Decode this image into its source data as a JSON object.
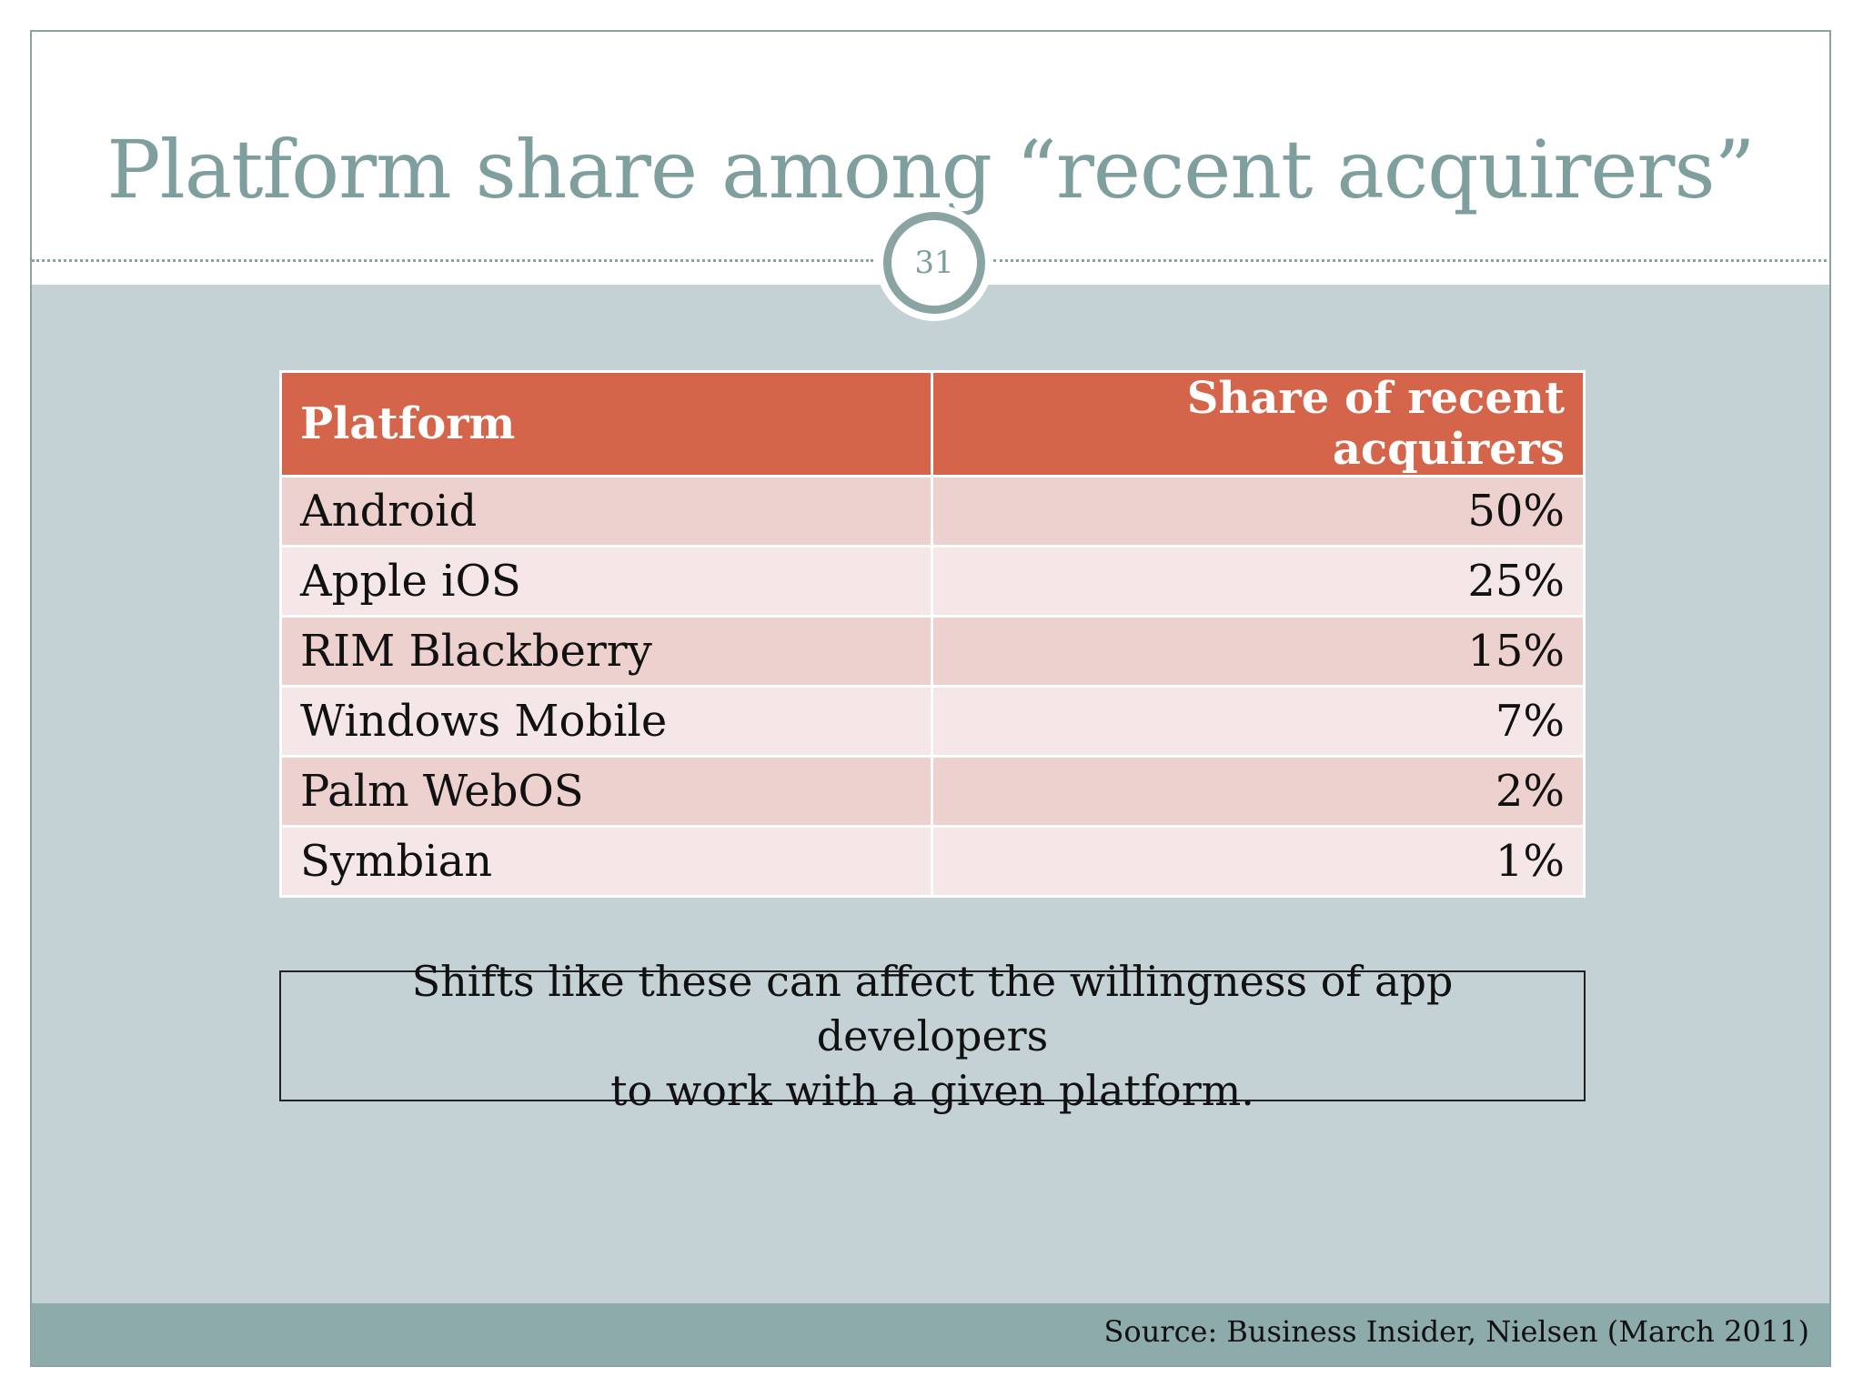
{
  "slide": {
    "title": "Platform share among “recent acquirers”",
    "slide_number": "31"
  },
  "table": {
    "headers": [
      "Platform",
      "Share of recent acquirers"
    ],
    "rows": [
      {
        "platform": "Android",
        "share": "50%"
      },
      {
        "platform": "Apple iOS",
        "share": "25%"
      },
      {
        "platform": "RIM Blackberry",
        "share": "15%"
      },
      {
        "platform": "Windows Mobile",
        "share": "7%"
      },
      {
        "platform": "Palm WebOS",
        "share": "2%"
      },
      {
        "platform": "Symbian",
        "share": "1%"
      }
    ]
  },
  "note": {
    "line1": "Shifts like these can affect the willingness of app developers",
    "line2": "to work with a given platform."
  },
  "footer": {
    "source": "Source:  Business Insider, Nielsen (March 2011)"
  },
  "colors": {
    "title": "#7f9e9e",
    "header_bg": "#d4644a",
    "row_odd": "#edd1ce",
    "row_even": "#f5e7e8",
    "body_bg": "#c4d2d6",
    "footer_bg": "#8eabab"
  }
}
